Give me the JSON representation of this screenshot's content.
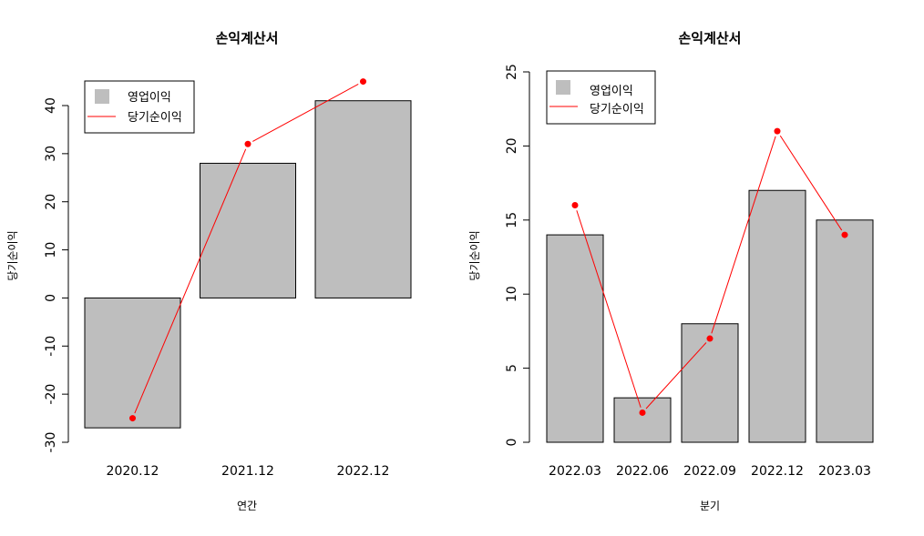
{
  "colors": {
    "bar_fill": "#bebebe",
    "line": "#ff0000",
    "bar_stroke": "#000000"
  },
  "chart_data": [
    {
      "type": "bar",
      "title": "손익계산서",
      "xlabel": "연간",
      "ylabel": "당기순이익",
      "categories": [
        "2020.12",
        "2021.12",
        "2022.12"
      ],
      "ylim": [
        -30,
        40
      ],
      "yticks": [
        -30,
        -20,
        -10,
        0,
        10,
        20,
        30,
        40
      ],
      "grid": false,
      "legend_position": "top-left",
      "series": [
        {
          "name": "영업이익",
          "kind": "bar",
          "values": [
            -27,
            28,
            41
          ]
        },
        {
          "name": "당기순이익",
          "kind": "line",
          "values": [
            -25,
            32,
            45
          ]
        }
      ]
    },
    {
      "type": "bar",
      "title": "손익계산서",
      "xlabel": "분기",
      "ylabel": "당기순이익",
      "categories": [
        "2022.03",
        "2022.06",
        "2022.09",
        "2022.12",
        "2023.03"
      ],
      "ylim": [
        0,
        25
      ],
      "yticks": [
        0,
        5,
        10,
        15,
        20,
        25
      ],
      "grid": false,
      "legend_position": "top-left",
      "series": [
        {
          "name": "영업이익",
          "kind": "bar",
          "values": [
            14,
            3,
            8,
            17,
            15
          ]
        },
        {
          "name": "당기순이익",
          "kind": "line",
          "values": [
            16,
            2,
            7,
            21,
            14
          ]
        }
      ]
    }
  ]
}
